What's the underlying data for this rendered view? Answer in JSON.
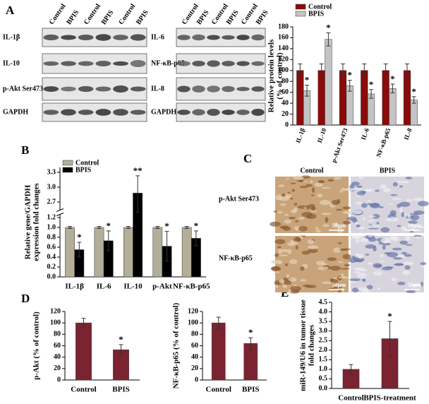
{
  "panel_labels": [
    "A",
    "B",
    "C",
    "D",
    "E"
  ],
  "blots": [
    {
      "lanes": [
        "Control",
        "BPIS",
        "Control",
        "BPIS",
        "Control",
        "BPIS"
      ],
      "rows": [
        "IL-1β",
        "IL-10",
        "p-Akt Ser473",
        "GAPDH"
      ]
    },
    {
      "lanes": [
        "Control",
        "BPIS",
        "Control",
        "BPIS",
        "Control",
        "BPIS"
      ],
      "rows": [
        "IL-6",
        "NF-κB-p65",
        "IL-8",
        "GAPDH"
      ]
    }
  ],
  "histology": {
    "columns": [
      "Control",
      "BPIS"
    ],
    "rows": [
      "p-Akt Ser473",
      "NF-κB-p65"
    ],
    "scale_bars": [
      "50μm",
      "50μm",
      "50μm",
      "50μm"
    ]
  },
  "chart_data": [
    {
      "type": "bar",
      "y_label": [
        "Relative protein levels",
        "(% of control)"
      ],
      "categories": [
        "IL-1β",
        "IL-10",
        "p-Akt Ser473",
        "IL-6",
        "NF-κB-p65",
        "IL-8"
      ],
      "series": [
        {
          "name": "Control",
          "color": "#8b0a0a",
          "values": [
            100,
            100,
            100,
            100,
            100,
            100
          ],
          "errors": [
            12,
            12,
            12,
            12,
            12,
            12
          ]
        },
        {
          "name": "BPIS",
          "color": "#c4c4c4",
          "values": [
            63,
            157,
            72,
            57,
            67,
            46
          ],
          "errors": [
            10,
            12,
            10,
            8,
            8,
            6
          ]
        }
      ],
      "annotations": [
        "*",
        "*",
        "*",
        "*",
        "*",
        "*"
      ],
      "ylim": [
        0,
        180
      ],
      "yticks": [
        0,
        20,
        40,
        60,
        80,
        100,
        120,
        140,
        160,
        180
      ],
      "legend": "top",
      "rotate_categories": true
    },
    {
      "type": "bar",
      "y_label": [
        "Relative gene/GAPDH",
        "expression fold changes"
      ],
      "categories": [
        "IL-1β",
        "IL-6",
        "IL-10",
        "p-Akt",
        "NF-κB-p65"
      ],
      "series": [
        {
          "name": "Control",
          "color": "#b3ae98",
          "values": [
            1,
            1,
            1,
            1,
            1
          ],
          "errors": [
            0.02,
            0.02,
            0.02,
            0.02,
            0.02
          ]
        },
        {
          "name": "BPIS",
          "color": "#000000",
          "values": [
            0.55,
            0.73,
            2.88,
            0.62,
            0.78
          ],
          "errors": [
            0.15,
            0.2,
            0.35,
            0.3,
            0.15
          ]
        }
      ],
      "annotations": [
        "*",
        "*",
        "**",
        "*",
        "*"
      ],
      "ylim": [
        0,
        3.4
      ],
      "y_break": [
        1.25,
        2.55
      ],
      "yticks": [
        {
          "value": 0,
          "label": "0.0"
        },
        0.2,
        0.4,
        0.6,
        0.8,
        {
          "value": 1,
          "label": "1.0"
        },
        1.2,
        2.7,
        {
          "value": 3,
          "label": "3.0"
        },
        3.3
      ],
      "legend": "upper left"
    },
    {
      "type": "bar",
      "y_label": [
        "p-Akt (% of control)"
      ],
      "categories": [
        "Control",
        "BPIS"
      ],
      "color": "#7b2331",
      "values": [
        100,
        53
      ],
      "errors": [
        8,
        9
      ],
      "annotations": [
        null,
        "*"
      ],
      "ylim": [
        0,
        120
      ],
      "yticks": [
        0,
        20,
        40,
        60,
        80,
        100,
        120
      ]
    },
    {
      "type": "bar",
      "y_label": [
        "NF-κB-p65 (% of control)"
      ],
      "categories": [
        "Control",
        "BPIS"
      ],
      "color": "#7b2331",
      "values": [
        100,
        64
      ],
      "errors": [
        10,
        10
      ],
      "annotations": [
        null,
        "*"
      ],
      "ylim": [
        0,
        120
      ],
      "yticks": [
        0,
        20,
        40,
        60,
        80,
        100,
        120
      ]
    },
    {
      "type": "bar",
      "y_label": [
        "miR-149/U6 in tumor tissue",
        "fold changes"
      ],
      "categories": [
        "Control",
        "BPIS-treatment"
      ],
      "color": "#7b2331",
      "values": [
        1,
        2.6
      ],
      "errors": [
        0.25,
        0.9
      ],
      "annotations": [
        null,
        "*"
      ],
      "ylim": [
        0,
        4.5
      ],
      "yticks": [
        {
          "value": 0,
          "label": "0.0"
        },
        0.5,
        {
          "value": 1,
          "label": "1.0"
        },
        1.5,
        {
          "value": 2,
          "label": "2.0"
        },
        2.5,
        {
          "value": 3,
          "label": "3.0"
        },
        3.5,
        {
          "value": 4,
          "label": "4.0"
        },
        4.5
      ]
    }
  ]
}
